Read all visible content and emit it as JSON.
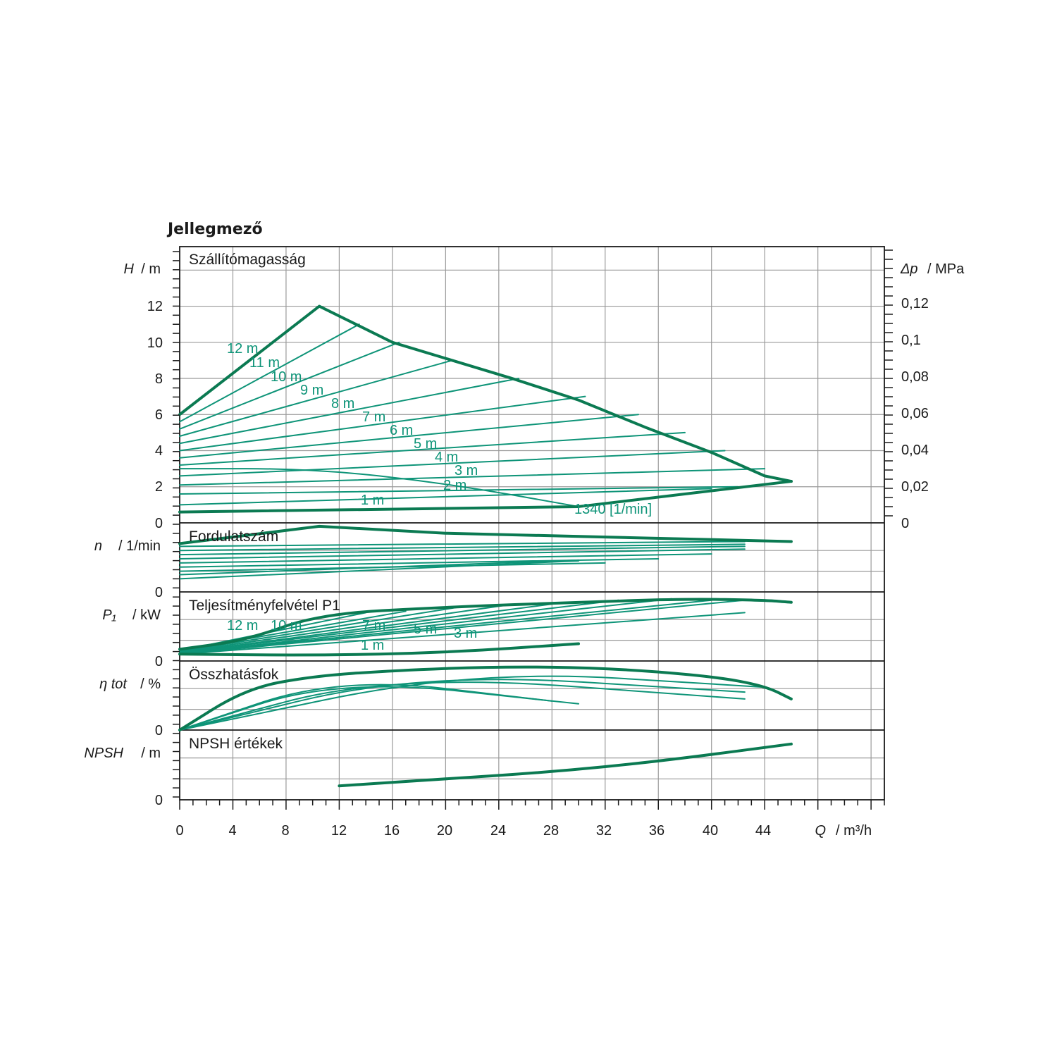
{
  "colors": {
    "curve": "#0e9478",
    "envelope": "#0b7a52",
    "grid": "#9a9a9a",
    "frame": "#1a1a1a"
  },
  "title": "Jellegmező",
  "x_axis": {
    "label_sym": "Q",
    "label_unit": "/ m³/h",
    "ticks": [
      "0",
      "4",
      "8",
      "12",
      "16",
      "20",
      "24",
      "28",
      "32",
      "36",
      "40",
      "44"
    ],
    "range": [
      0,
      53
    ]
  },
  "panels": {
    "head": {
      "title": "Szállítómagasság",
      "ylabel_sym": "H",
      "ylabel_unit": "/ m",
      "y_ticks": [
        "0",
        "2",
        "4",
        "6",
        "8",
        "10",
        "12"
      ],
      "right_label_sym": "Δp",
      "right_label_unit": "/ MPa",
      "right_ticks": [
        "0",
        "0,02",
        "0,04",
        "0,06",
        "0,08",
        "0,1",
        "0,12"
      ],
      "curve_labels": [
        "12 m",
        "11 m",
        "10 m",
        "9 m",
        "8 m",
        "7 m",
        "6 m",
        "5 m",
        "4 m",
        "3 m",
        "2 m",
        "1 m"
      ],
      "speed_label": "1340 [1/min]"
    },
    "speed": {
      "title": "Fordulatszám",
      "ylabel_sym": "n",
      "ylabel_unit": "/ 1/min",
      "y_zero": "0"
    },
    "power": {
      "title": "Teljesítményfelvétel P1",
      "ylabel_sym": "P₁",
      "ylabel_unit": "/ kW",
      "y_zero": "0",
      "curve_labels": [
        "12 m",
        "10 m",
        "7 m",
        "5 m",
        "3 m",
        "1 m"
      ]
    },
    "efficiency": {
      "title": "Összhatásfok",
      "ylabel_sym": "η tot",
      "ylabel_unit": "/ %",
      "y_zero": "0"
    },
    "npsh": {
      "title": "NPSH értékek",
      "ylabel_sym": "NPSH",
      "ylabel_unit": "/ m",
      "y_zero": "0"
    }
  },
  "chart_data": {
    "type": "line",
    "title": "Jellegmező",
    "xlabel": "Q / m³/h",
    "xlim": [
      0,
      53
    ],
    "head": {
      "ylabel": "H / m",
      "ylim": [
        0,
        15.3
      ],
      "y2label": "Δp / MPa",
      "envelope_max": [
        [
          0,
          6.0
        ],
        [
          10.5,
          12.0
        ],
        [
          16,
          10.0
        ],
        [
          20.5,
          9.0
        ],
        [
          25,
          8.0
        ],
        [
          30,
          6.8
        ],
        [
          35,
          5.3
        ],
        [
          40,
          3.9
        ],
        [
          44,
          2.6
        ],
        [
          46,
          2.3
        ]
      ],
      "envelope_min": [
        [
          0,
          0.6
        ],
        [
          30,
          0.9
        ],
        [
          46,
          2.3
        ]
      ],
      "speed_curve_1340": [
        [
          0,
          3.0
        ],
        [
          10,
          3.0
        ],
        [
          20,
          2.2
        ],
        [
          30,
          0.9
        ]
      ],
      "constant_head_lines": [
        {
          "name": "12 m",
          "points": [
            [
              0,
              6.0
            ],
            [
              10.5,
              12.0
            ]
          ]
        },
        {
          "name": "11 m",
          "points": [
            [
              0,
              5.6
            ],
            [
              13.5,
              11.0
            ]
          ]
        },
        {
          "name": "10 m",
          "points": [
            [
              0,
              5.2
            ],
            [
              16.5,
              10.0
            ]
          ]
        },
        {
          "name": "9 m",
          "points": [
            [
              0,
              4.8
            ],
            [
              20.5,
              9.0
            ]
          ]
        },
        {
          "name": "8 m",
          "points": [
            [
              0,
              4.4
            ],
            [
              25.5,
              8.0
            ]
          ]
        },
        {
          "name": "7 m",
          "points": [
            [
              0,
              4.0
            ],
            [
              30.5,
              7.0
            ]
          ]
        },
        {
          "name": "6 m",
          "points": [
            [
              0,
              3.6
            ],
            [
              34.5,
              6.0
            ]
          ]
        },
        {
          "name": "5 m",
          "points": [
            [
              0,
              3.2
            ],
            [
              38,
              5.0
            ]
          ]
        },
        {
          "name": "4 m",
          "points": [
            [
              0,
              2.6
            ],
            [
              41,
              4.0
            ]
          ]
        },
        {
          "name": "3 m",
          "points": [
            [
              0,
              2.1
            ],
            [
              44,
              3.0
            ]
          ]
        },
        {
          "name": "2 m",
          "points": [
            [
              0,
              1.6
            ],
            [
              42,
              2.0
            ]
          ]
        },
        {
          "name": "1 m",
          "points": [
            [
              0,
              1.0
            ],
            [
              40,
              1.9
            ]
          ]
        }
      ]
    },
    "speed": {
      "ylabel": "n / 1/min",
      "envelope_max": [
        [
          0,
          0.7
        ],
        [
          10.5,
          0.95
        ],
        [
          20,
          0.85
        ],
        [
          46,
          0.73
        ]
      ],
      "curves": [
        [
          [
            0,
            0.66
          ],
          [
            42.5,
            0.73
          ]
        ],
        [
          [
            0,
            0.6
          ],
          [
            42.5,
            0.69
          ]
        ],
        [
          [
            0,
            0.54
          ],
          [
            42.5,
            0.66
          ]
        ],
        [
          [
            0,
            0.48
          ],
          [
            42.5,
            0.62
          ]
        ],
        [
          [
            0,
            0.42
          ],
          [
            40,
            0.55
          ]
        ],
        [
          [
            0,
            0.36
          ],
          [
            36,
            0.48
          ]
        ],
        [
          [
            0,
            0.3
          ],
          [
            32,
            0.42
          ]
        ],
        [
          [
            0,
            0.25
          ],
          [
            30,
            0.46
          ]
        ],
        [
          [
            0,
            0.19
          ],
          [
            30,
            0.45
          ]
        ]
      ]
    },
    "power": {
      "ylabel": "P1 / kW",
      "envelope_max": [
        [
          0,
          0.17
        ],
        [
          5,
          0.3
        ],
        [
          10.5,
          0.68
        ],
        [
          20,
          0.78
        ],
        [
          30,
          0.85
        ],
        [
          38,
          0.9
        ],
        [
          44,
          0.88
        ],
        [
          46,
          0.85
        ]
      ],
      "min_curve": [
        [
          0,
          0.1
        ],
        [
          10,
          0.08
        ],
        [
          20,
          0.12
        ],
        [
          30,
          0.25
        ]
      ],
      "curves": [
        [
          [
            0,
            0.15
          ],
          [
            14,
            0.7
          ]
        ],
        [
          [
            0,
            0.15
          ],
          [
            17,
            0.72
          ]
        ],
        [
          [
            0,
            0.14
          ],
          [
            21,
            0.78
          ]
        ],
        [
          [
            0,
            0.13
          ],
          [
            25,
            0.82
          ]
        ],
        [
          [
            0,
            0.12
          ],
          [
            29,
            0.85
          ]
        ],
        [
          [
            0,
            0.12
          ],
          [
            33,
            0.88
          ]
        ],
        [
          [
            0,
            0.11
          ],
          [
            37,
            0.9
          ]
        ],
        [
          [
            0,
            0.11
          ],
          [
            40,
            0.88
          ]
        ],
        [
          [
            0,
            0.1
          ],
          [
            43,
            0.89
          ]
        ],
        [
          [
            0,
            0.1
          ],
          [
            42.5,
            0.7
          ]
        ]
      ]
    },
    "efficiency": {
      "ylabel": "η tot / %",
      "envelope": [
        [
          0,
          0.0
        ],
        [
          5,
          0.6
        ],
        [
          10,
          0.78
        ],
        [
          16,
          0.86
        ],
        [
          24,
          0.92
        ],
        [
          32,
          0.9
        ],
        [
          40,
          0.78
        ],
        [
          44,
          0.64
        ],
        [
          46,
          0.45
        ]
      ],
      "curves": [
        [
          [
            0,
            0.0
          ],
          [
            12,
            0.78
          ],
          [
            28,
            0.42
          ]
        ],
        [
          [
            0,
            0.0
          ],
          [
            12,
            0.75
          ],
          [
            30,
            0.38
          ]
        ],
        [
          [
            0,
            0.0
          ],
          [
            16,
            0.82
          ],
          [
            42.5,
            0.45
          ]
        ],
        [
          [
            0,
            0.0
          ],
          [
            18,
            0.84
          ],
          [
            42.5,
            0.55
          ]
        ],
        [
          [
            0,
            0.0
          ],
          [
            22,
            0.88
          ],
          [
            44,
            0.62
          ]
        ]
      ]
    },
    "npsh": {
      "ylabel": "NPSH / m",
      "curve": [
        [
          12,
          0.2
        ],
        [
          20,
          0.3
        ],
        [
          28,
          0.4
        ],
        [
          36,
          0.55
        ],
        [
          46,
          0.8
        ]
      ]
    }
  }
}
